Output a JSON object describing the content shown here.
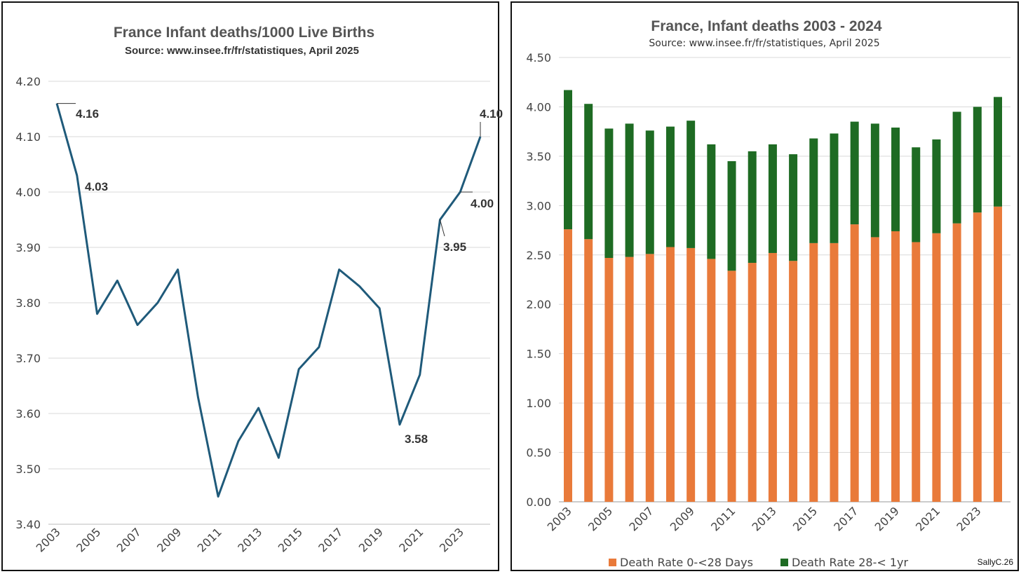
{
  "left_chart": {
    "title": "France Infant deaths/1000 Live Births",
    "subtitle": "Source: www.insee.fr/fr/statistiques, April 2025",
    "chart_data": {
      "type": "line",
      "title": "France Infant deaths/1000 Live Births",
      "subtitle": "Source: www.insee.fr/fr/statistiques, April 2025",
      "x": [
        2003,
        2004,
        2005,
        2006,
        2007,
        2008,
        2009,
        2010,
        2011,
        2012,
        2013,
        2014,
        2015,
        2016,
        2017,
        2018,
        2019,
        2020,
        2021,
        2022,
        2023,
        2024
      ],
      "values": [
        4.16,
        4.03,
        3.78,
        3.84,
        3.76,
        3.8,
        3.86,
        3.63,
        3.45,
        3.55,
        3.61,
        3.52,
        3.68,
        3.72,
        3.86,
        3.83,
        3.79,
        3.58,
        3.67,
        3.95,
        4.0,
        4.1
      ],
      "xtick_labels": [
        "2003",
        "2005",
        "2007",
        "2009",
        "2011",
        "2013",
        "2015",
        "2017",
        "2019",
        "2021",
        "2023"
      ],
      "ytick_labels": [
        "3.40",
        "3.50",
        "3.60",
        "3.70",
        "3.80",
        "3.90",
        "4.00",
        "4.10",
        "4.20"
      ],
      "ylim": [
        3.4,
        4.2
      ],
      "grid": true,
      "line_color": "#1f5a7a",
      "annotations": [
        {
          "year": 2003,
          "text": "4.16"
        },
        {
          "year": 2004,
          "text": "4.03"
        },
        {
          "year": 2020,
          "text": "3.58"
        },
        {
          "year": 2022,
          "text": "3.95"
        },
        {
          "year": 2023,
          "text": "4.00"
        },
        {
          "year": 2024,
          "text": "4.10"
        }
      ]
    }
  },
  "right_chart": {
    "title": "France, Infant deaths 2003 - 2024",
    "subtitle": "Source: www.insee.fr/fr/statistiques, April 2025",
    "credit": "SallyC.26",
    "chart_data": {
      "type": "bar",
      "stacked": true,
      "title": "France, Infant deaths 2003 - 2024",
      "subtitle": "Source: www.insee.fr/fr/statistiques, April 2025",
      "categories": [
        2003,
        2004,
        2005,
        2006,
        2007,
        2008,
        2009,
        2010,
        2011,
        2012,
        2013,
        2014,
        2015,
        2016,
        2017,
        2018,
        2019,
        2020,
        2021,
        2022,
        2023,
        2024
      ],
      "series": [
        {
          "name": "Death Rate 0-<28 Days",
          "color": "#e97a3a",
          "values": [
            2.76,
            2.66,
            2.47,
            2.48,
            2.51,
            2.58,
            2.57,
            2.46,
            2.34,
            2.42,
            2.52,
            2.44,
            2.62,
            2.62,
            2.81,
            2.68,
            2.74,
            2.63,
            2.72,
            2.82,
            2.93,
            2.99
          ]
        },
        {
          "name": "Death Rate 28-< 1yr",
          "color": "#1e6b23",
          "values": [
            1.41,
            1.37,
            1.31,
            1.35,
            1.25,
            1.22,
            1.29,
            1.16,
            1.11,
            1.13,
            1.1,
            1.08,
            1.06,
            1.11,
            1.04,
            1.15,
            1.05,
            0.96,
            0.95,
            1.13,
            1.07,
            1.11
          ]
        }
      ],
      "xtick_labels": [
        "2003",
        "2005",
        "2007",
        "2009",
        "2011",
        "2013",
        "2015",
        "2017",
        "2019",
        "2021",
        "2023"
      ],
      "ytick_labels": [
        "0.00",
        "0.50",
        "1.00",
        "1.50",
        "2.00",
        "2.50",
        "3.00",
        "3.50",
        "4.00",
        "4.50"
      ],
      "ylim": [
        0,
        4.5
      ],
      "grid": true,
      "legend_position": "bottom"
    }
  }
}
